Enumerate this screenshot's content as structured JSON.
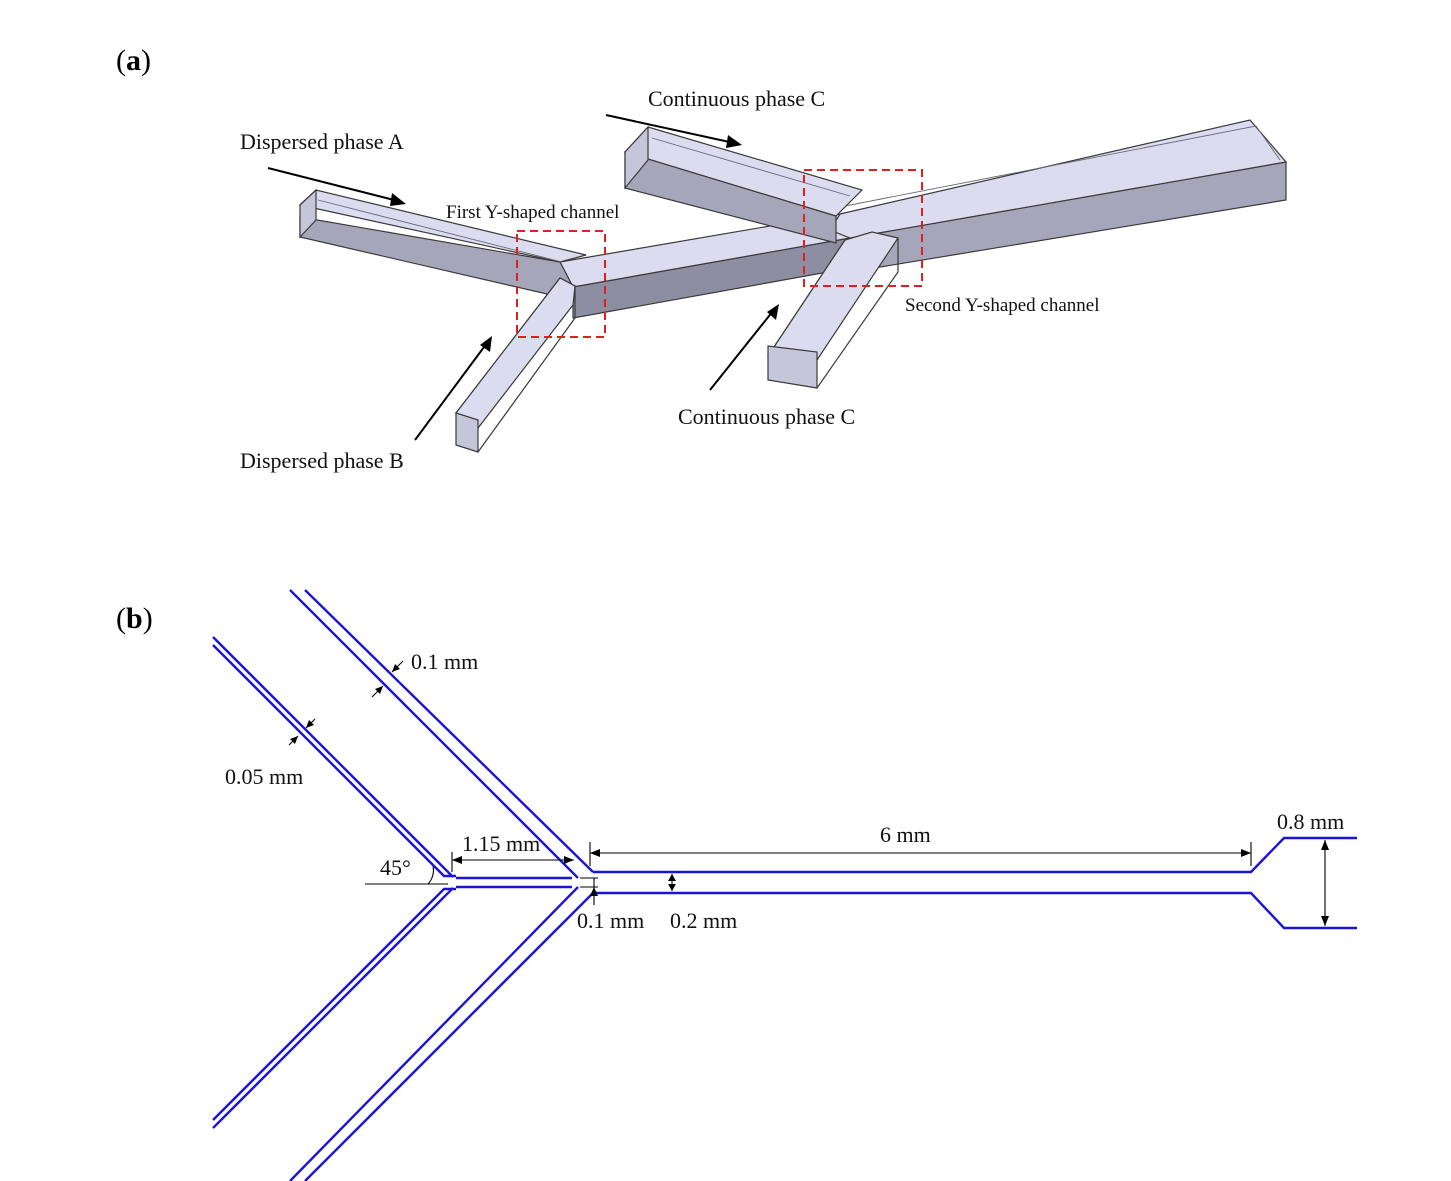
{
  "panel_a": {
    "label_open": "(",
    "label_letter": "a",
    "label_close": ")",
    "labels": {
      "dispersed_a": "Dispersed phase A",
      "dispersed_b": "Dispersed phase B",
      "continuous_top": "Continuous phase C",
      "continuous_bottom": "Continuous phase C",
      "first_y": "First Y-shaped channel",
      "second_y": "Second Y-shaped channel"
    },
    "colors": {
      "junction_box": "#e02020",
      "channel_top": "#dcdcf0",
      "channel_side": "#a6a6ba"
    }
  },
  "panel_b": {
    "label_open": "(",
    "label_letter": "b",
    "label_close": ")",
    "dimensions": {
      "inlet_width_outer": "0.1 mm",
      "inlet_width_inner": "0.05 mm",
      "angle": "45°",
      "first_length": "1.15 mm",
      "main_length": "6 mm",
      "outlet_width": "0.8 mm",
      "gap": "0.1 mm",
      "main_width": "0.2 mm"
    },
    "colors": {
      "channel": "#1a14d6"
    }
  }
}
